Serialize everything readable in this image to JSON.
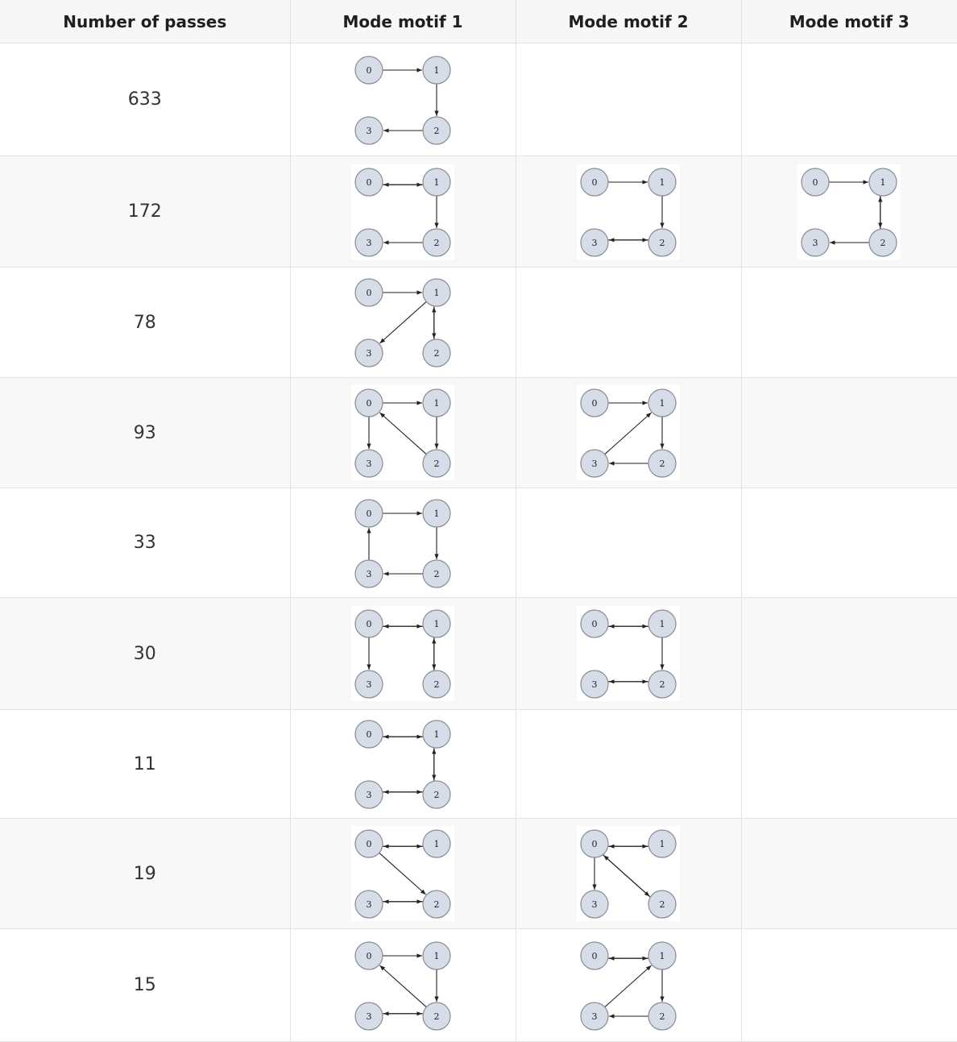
{
  "headers": [
    "Number of passes",
    "Mode motif 1",
    "Mode motif 2",
    "Mode motif 3"
  ],
  "node_labels": [
    "0",
    "1",
    "2",
    "3"
  ],
  "rows": [
    {
      "passes": "633",
      "motifs": [
        {
          "icon": "motif-graph-icon",
          "edges": [
            [
              0,
              1
            ],
            [
              1,
              2
            ],
            [
              2,
              3
            ]
          ]
        },
        null,
        null
      ]
    },
    {
      "passes": "172",
      "motifs": [
        {
          "icon": "motif-graph-icon",
          "edges": [
            [
              0,
              1
            ],
            [
              1,
              0
            ],
            [
              1,
              2
            ],
            [
              2,
              3
            ]
          ]
        },
        {
          "icon": "motif-graph-icon",
          "edges": [
            [
              0,
              1
            ],
            [
              1,
              2
            ],
            [
              2,
              3
            ],
            [
              3,
              2
            ]
          ]
        },
        {
          "icon": "motif-graph-icon",
          "edges": [
            [
              0,
              1
            ],
            [
              1,
              2
            ],
            [
              2,
              1
            ],
            [
              2,
              3
            ]
          ]
        }
      ]
    },
    {
      "passes": "78",
      "motifs": [
        {
          "icon": "motif-graph-icon",
          "edges": [
            [
              0,
              1
            ],
            [
              1,
              2
            ],
            [
              2,
              1
            ],
            [
              1,
              3
            ]
          ]
        },
        null,
        null
      ]
    },
    {
      "passes": "93",
      "motifs": [
        {
          "icon": "motif-graph-icon",
          "edges": [
            [
              0,
              1
            ],
            [
              1,
              2
            ],
            [
              2,
              0
            ],
            [
              0,
              3
            ]
          ]
        },
        {
          "icon": "motif-graph-icon",
          "edges": [
            [
              0,
              1
            ],
            [
              1,
              2
            ],
            [
              2,
              3
            ],
            [
              3,
              1
            ]
          ]
        },
        null
      ]
    },
    {
      "passes": "33",
      "motifs": [
        {
          "icon": "motif-graph-icon",
          "edges": [
            [
              0,
              1
            ],
            [
              1,
              2
            ],
            [
              2,
              3
            ],
            [
              3,
              0
            ]
          ]
        },
        null,
        null
      ]
    },
    {
      "passes": "30",
      "motifs": [
        {
          "icon": "motif-graph-icon",
          "edges": [
            [
              0,
              1
            ],
            [
              1,
              0
            ],
            [
              1,
              2
            ],
            [
              2,
              1
            ],
            [
              0,
              3
            ]
          ]
        },
        {
          "icon": "motif-graph-icon",
          "edges": [
            [
              0,
              1
            ],
            [
              1,
              0
            ],
            [
              1,
              2
            ],
            [
              2,
              3
            ],
            [
              3,
              2
            ]
          ]
        },
        null
      ]
    },
    {
      "passes": "11",
      "motifs": [
        {
          "icon": "motif-graph-icon",
          "edges": [
            [
              0,
              1
            ],
            [
              1,
              0
            ],
            [
              1,
              2
            ],
            [
              2,
              1
            ],
            [
              2,
              3
            ],
            [
              3,
              2
            ]
          ]
        },
        null,
        null
      ]
    },
    {
      "passes": "19",
      "motifs": [
        {
          "icon": "motif-graph-icon",
          "edges": [
            [
              0,
              1
            ],
            [
              1,
              0
            ],
            [
              0,
              2
            ],
            [
              2,
              3
            ],
            [
              3,
              2
            ]
          ]
        },
        {
          "icon": "motif-graph-icon",
          "edges": [
            [
              0,
              1
            ],
            [
              1,
              0
            ],
            [
              0,
              2
            ],
            [
              2,
              0
            ],
            [
              0,
              3
            ]
          ]
        },
        null
      ]
    },
    {
      "passes": "15",
      "motifs": [
        {
          "icon": "motif-graph-icon",
          "edges": [
            [
              0,
              1
            ],
            [
              1,
              2
            ],
            [
              2,
              0
            ],
            [
              2,
              3
            ],
            [
              3,
              2
            ]
          ]
        },
        {
          "icon": "motif-graph-icon",
          "edges": [
            [
              0,
              1
            ],
            [
              1,
              0
            ],
            [
              1,
              2
            ],
            [
              2,
              3
            ],
            [
              3,
              1
            ]
          ]
        },
        null
      ]
    }
  ]
}
